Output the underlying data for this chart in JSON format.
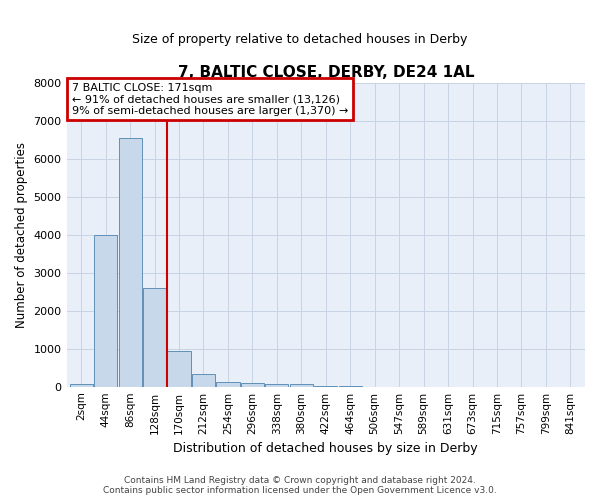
{
  "title": "7, BALTIC CLOSE, DERBY, DE24 1AL",
  "subtitle": "Size of property relative to detached houses in Derby",
  "xlabel": "Distribution of detached houses by size in Derby",
  "ylabel": "Number of detached properties",
  "categories": [
    "2sqm",
    "44sqm",
    "86sqm",
    "128sqm",
    "170sqm",
    "212sqm",
    "254sqm",
    "296sqm",
    "338sqm",
    "380sqm",
    "422sqm",
    "464sqm",
    "506sqm",
    "547sqm",
    "589sqm",
    "631sqm",
    "673sqm",
    "715sqm",
    "757sqm",
    "799sqm",
    "841sqm"
  ],
  "values": [
    75,
    4000,
    6550,
    2600,
    950,
    330,
    115,
    85,
    70,
    60,
    10,
    5,
    3,
    2,
    1,
    1,
    1,
    0,
    0,
    0,
    0
  ],
  "bar_color": "#c8d8eb",
  "bar_edge_color": "#6090b8",
  "vline_x": 3.5,
  "vline_color": "#cc0000",
  "annotation_text_line1": "7 BALTIC CLOSE: 171sqm",
  "annotation_text_line2": "← 91% of detached houses are smaller (13,126)",
  "annotation_text_line3": "9% of semi-detached houses are larger (1,370) →",
  "annotation_box_color": "#ffffff",
  "annotation_border_color": "#cc0000",
  "ylim": [
    0,
    8000
  ],
  "yticks": [
    0,
    1000,
    2000,
    3000,
    4000,
    5000,
    6000,
    7000,
    8000
  ],
  "grid_color": "#c8d4e4",
  "background_color": "#e8eff8",
  "footer_line1": "Contains HM Land Registry data © Crown copyright and database right 2024.",
  "footer_line2": "Contains public sector information licensed under the Open Government Licence v3.0."
}
